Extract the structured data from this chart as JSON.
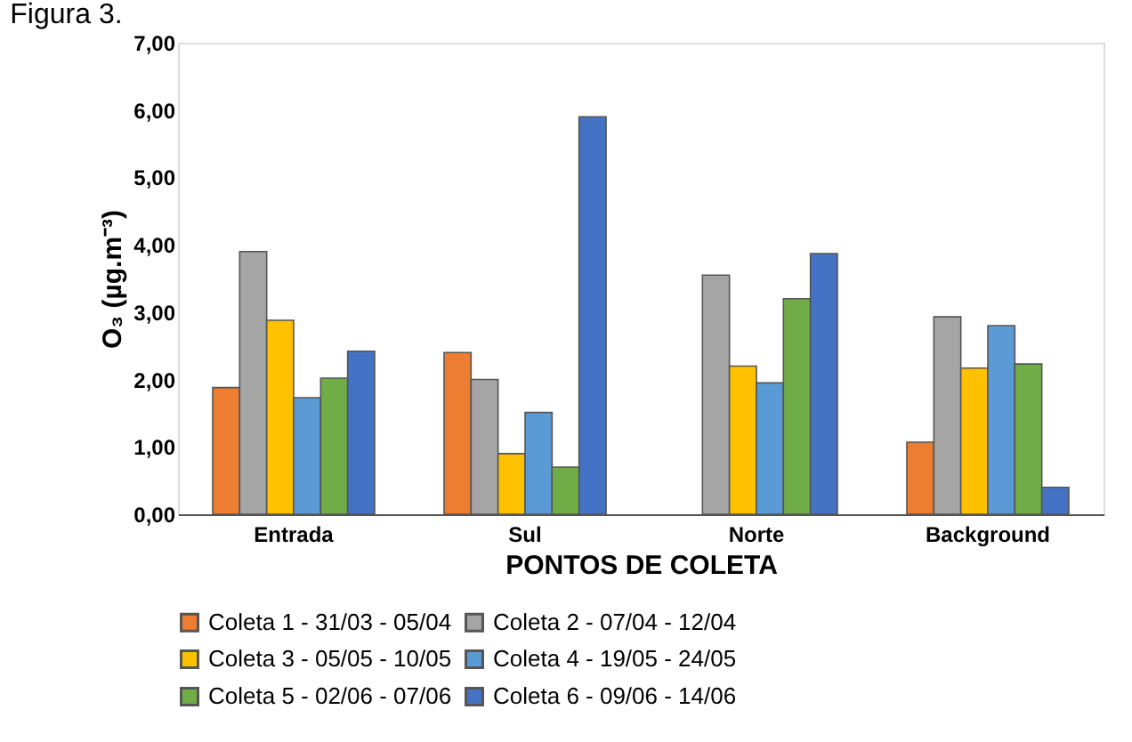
{
  "chart_data": {
    "type": "bar",
    "title": "Figura 3.",
    "xlabel": "PONTOS DE COLETA",
    "ylabel": "O₃ (µg.m⁻³)",
    "categories": [
      "Entrada",
      "Sul",
      "Norte",
      "Background"
    ],
    "series": [
      {
        "name": "Coleta 1 - 31/03 - 05/04",
        "color": "#ed7d31",
        "values": [
          1.88,
          2.4,
          null,
          1.07
        ]
      },
      {
        "name": "Coleta 2 - 07/04 - 12/04",
        "color": "#a5a5a5",
        "values": [
          3.9,
          2.0,
          3.55,
          2.93
        ]
      },
      {
        "name": "Coleta 3 - 05/05 - 10/05",
        "color": "#ffc000",
        "values": [
          2.88,
          0.9,
          2.2,
          2.17
        ]
      },
      {
        "name": "Coleta 4 - 19/05 - 24/05",
        "color": "#5b9bd5",
        "values": [
          1.73,
          1.51,
          1.95,
          2.8
        ]
      },
      {
        "name": "Coleta 5 - 02/06 - 07/06",
        "color": "#70ad47",
        "values": [
          2.02,
          0.7,
          3.2,
          2.23
        ]
      },
      {
        "name": "Coleta 6 - 09/06 - 14/06",
        "color": "#4472c4",
        "values": [
          2.42,
          5.9,
          3.87,
          0.4
        ]
      }
    ],
    "ylim": [
      0,
      7
    ],
    "yticks": [
      {
        "value": 0,
        "label": "0,00"
      },
      {
        "value": 1,
        "label": "1,00"
      },
      {
        "value": 2,
        "label": "2,00"
      },
      {
        "value": 3,
        "label": "3,00"
      },
      {
        "value": 4,
        "label": "4,00"
      },
      {
        "value": 5,
        "label": "5,00"
      },
      {
        "value": 6,
        "label": "6,00"
      },
      {
        "value": 7,
        "label": "7,00"
      }
    ],
    "grid": false,
    "legend": "bottom"
  }
}
